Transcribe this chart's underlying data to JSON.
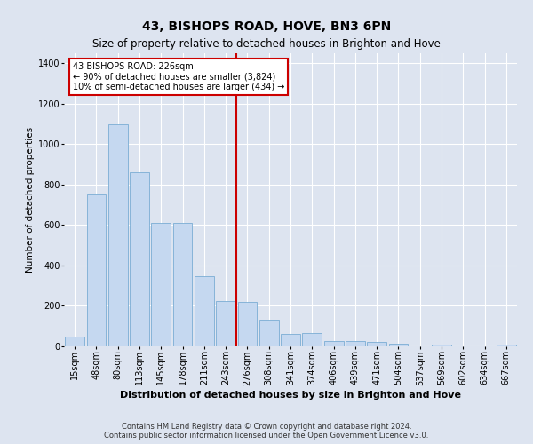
{
  "title": "43, BISHOPS ROAD, HOVE, BN3 6PN",
  "subtitle": "Size of property relative to detached houses in Brighton and Hove",
  "xlabel": "Distribution of detached houses by size in Brighton and Hove",
  "ylabel": "Number of detached properties",
  "footer_line1": "Contains HM Land Registry data © Crown copyright and database right 2024.",
  "footer_line2": "Contains public sector information licensed under the Open Government Licence v3.0.",
  "annotation_line1": "43 BISHOPS ROAD: 226sqm",
  "annotation_line2": "← 90% of detached houses are smaller (3,824)",
  "annotation_line3": "10% of semi-detached houses are larger (434) →",
  "bar_categories": [
    "15sqm",
    "48sqm",
    "80sqm",
    "113sqm",
    "145sqm",
    "178sqm",
    "211sqm",
    "243sqm",
    "276sqm",
    "308sqm",
    "341sqm",
    "374sqm",
    "406sqm",
    "439sqm",
    "471sqm",
    "504sqm",
    "537sqm",
    "569sqm",
    "602sqm",
    "634sqm",
    "667sqm"
  ],
  "bar_values": [
    48,
    750,
    1100,
    860,
    610,
    610,
    345,
    225,
    220,
    130,
    60,
    65,
    25,
    25,
    20,
    12,
    0,
    10,
    0,
    0,
    10
  ],
  "bar_color": "#c5d8f0",
  "bar_edge_color": "#7aadd4",
  "vline_color": "#cc0000",
  "vline_x": 7.5,
  "ylim": [
    0,
    1450
  ],
  "yticks": [
    0,
    200,
    400,
    600,
    800,
    1000,
    1200,
    1400
  ],
  "bg_color": "#dde4f0",
  "grid_color": "#ffffff",
  "title_fontsize": 10,
  "subtitle_fontsize": 8.5,
  "xlabel_fontsize": 8,
  "ylabel_fontsize": 7.5,
  "tick_fontsize": 7,
  "footer_fontsize": 6,
  "ann_fontsize": 7
}
